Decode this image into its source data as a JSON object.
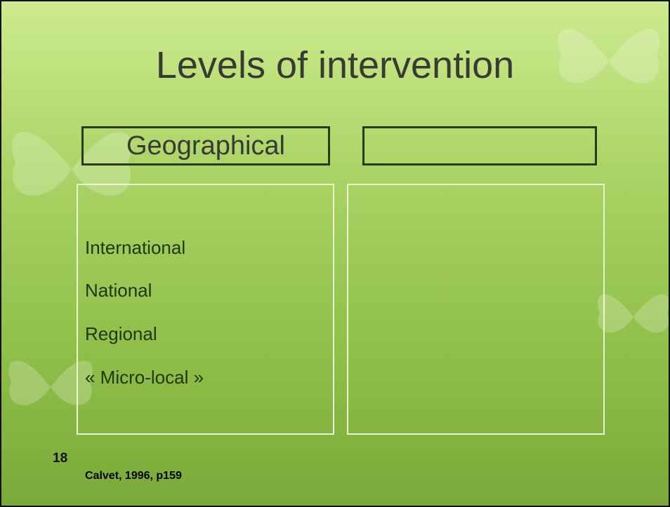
{
  "slide": {
    "title": "Levels of intervention",
    "columns": [
      {
        "heading": "Geographical",
        "items": [
          "International",
          "National",
          "Regional",
          "« Micro-local »"
        ]
      }
    ],
    "slide_number": "18",
    "citation": "Calvet, 1996, p159"
  }
}
